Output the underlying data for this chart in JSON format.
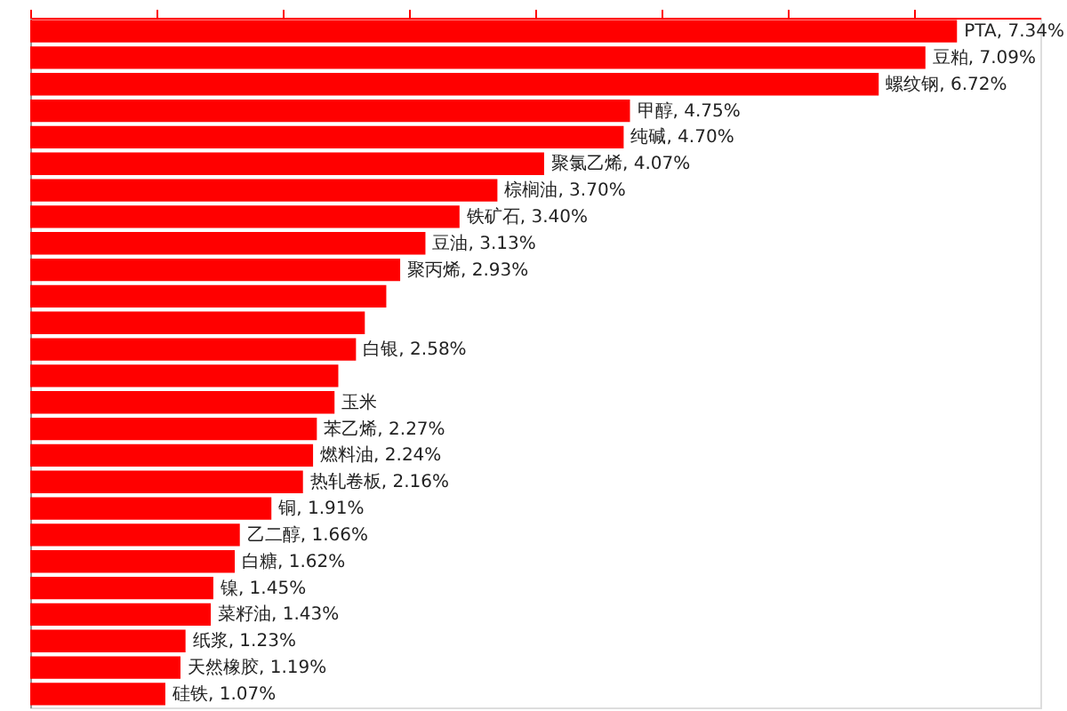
{
  "chart_data": {
    "type": "bar",
    "orientation": "horizontal",
    "color": "#ff0000",
    "categories": [
      null,
      null,
      null,
      null,
      null,
      null,
      null,
      null,
      null,
      null,
      null,
      null,
      null,
      null,
      null,
      null,
      null,
      null,
      null,
      null,
      null,
      null,
      null,
      null,
      null,
      null
    ],
    "values": [
      7.34,
      7.09,
      6.72,
      4.75,
      4.7,
      4.07,
      3.7,
      3.4,
      3.13,
      2.93,
      2.82,
      2.65,
      2.58,
      2.44,
      2.41,
      2.27,
      2.24,
      2.16,
      1.91,
      1.66,
      1.62,
      1.45,
      1.43,
      1.23,
      1.19,
      1.07
    ],
    "value_labels": [
      "PTA, 7.34%",
      "豆粕, 7.09%",
      "螺纹钢, 6.72%",
      "甲醇, 4.75%",
      "纯碱, 4.70%",
      "聚氯乙烯, 4.07%",
      "棕榈油, 3.70%",
      "铁矿石, 3.40%",
      "豆油, 3.13%",
      "聚丙烯, 2.93%",
      null,
      null,
      "白银, 2.58%",
      null,
      "玉米",
      "苯乙烯, 2.27%",
      "燃料油, 2.24%",
      "热轧卷板, 2.16%",
      "铜, 1.91%",
      "乙二醇, 1.66%",
      "白糖, 1.62%",
      "镍, 1.45%",
      "菜籽油, 1.43%",
      "纸浆, 1.23%",
      "天然橡胶, 1.19%",
      "硅铁, 1.07%"
    ],
    "xlim": [
      0,
      8
    ],
    "xticks": [
      {
        "value": 0,
        "label": null
      },
      {
        "value": 1,
        "label": null
      },
      {
        "value": 2,
        "label": null
      },
      {
        "value": 3,
        "label": null
      },
      {
        "value": 4,
        "label": null
      },
      {
        "value": 5,
        "label": null
      },
      {
        "value": 6,
        "label": null
      },
      {
        "value": 7,
        "label": null
      }
    ],
    "tick_labels": false,
    "grid": false
  }
}
